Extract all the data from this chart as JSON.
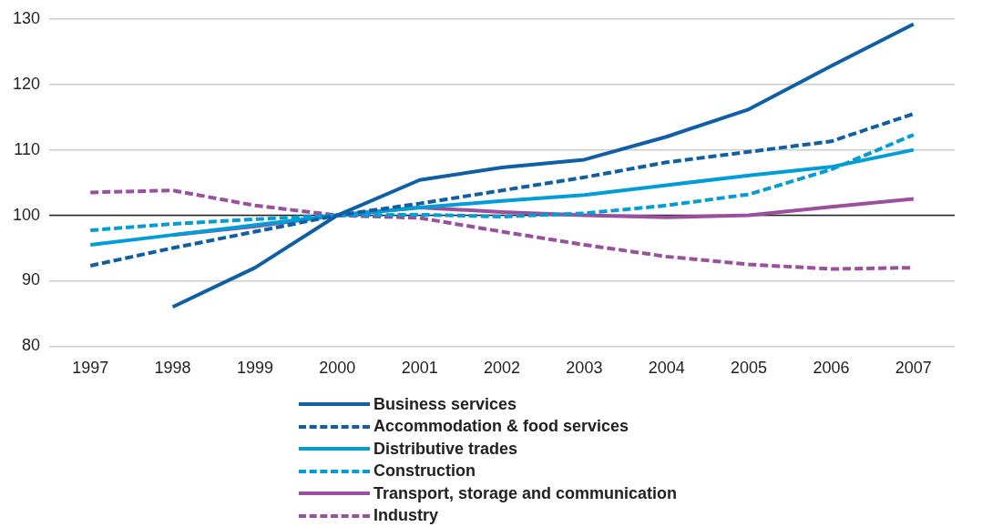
{
  "chart_data": {
    "type": "line",
    "categories": [
      "1997",
      "1998",
      "1999",
      "2000",
      "2001",
      "2002",
      "2003",
      "2004",
      "2005",
      "2006",
      "2007"
    ],
    "ylim": [
      80,
      130
    ],
    "yticks": [
      80,
      90,
      100,
      110,
      120,
      130
    ],
    "grid": "y",
    "legend": "bottom",
    "marker": "none",
    "ref_lines": [
      {
        "axis": "y",
        "value": 100,
        "color": "#222222"
      }
    ],
    "series": [
      {
        "name": "Business services",
        "color": "#0e5fa6",
        "line_style": "solid",
        "values": [
          null,
          86,
          92,
          100,
          105.4,
          107.3,
          108.5,
          112,
          116.2,
          122.8,
          129.2
        ]
      },
      {
        "name": "Accommodation & food services",
        "color": "#0e5fa6",
        "line_style": "dashed",
        "values": [
          92.3,
          95,
          97.5,
          100,
          101.8,
          103.8,
          105.8,
          108.1,
          109.7,
          111.3,
          115.5
        ]
      },
      {
        "name": "Distributive trades",
        "color": "#009dd6",
        "line_style": "solid",
        "values": [
          95.5,
          97,
          98.5,
          100,
          101.2,
          102.2,
          103.1,
          104.6,
          106.1,
          107.4,
          110
        ]
      },
      {
        "name": "Construction",
        "color": "#009dd6",
        "line_style": "dashed",
        "values": [
          97.7,
          98.7,
          99.4,
          100,
          100.1,
          99.8,
          100.3,
          101.5,
          103.2,
          107,
          112.3
        ]
      },
      {
        "name": "Transport, storage and communication",
        "color": "#9b4f9f",
        "line_style": "solid",
        "values": [
          null,
          97,
          98.3,
          100,
          101.2,
          100.5,
          100,
          99.7,
          100,
          101.3,
          102.5
        ]
      },
      {
        "name": "Industry",
        "color": "#9b4f9f",
        "line_style": "dashed",
        "values": [
          103.5,
          103.8,
          101.5,
          100,
          99.6,
          97.5,
          95.5,
          93.7,
          92.5,
          91.8,
          92
        ]
      }
    ]
  }
}
